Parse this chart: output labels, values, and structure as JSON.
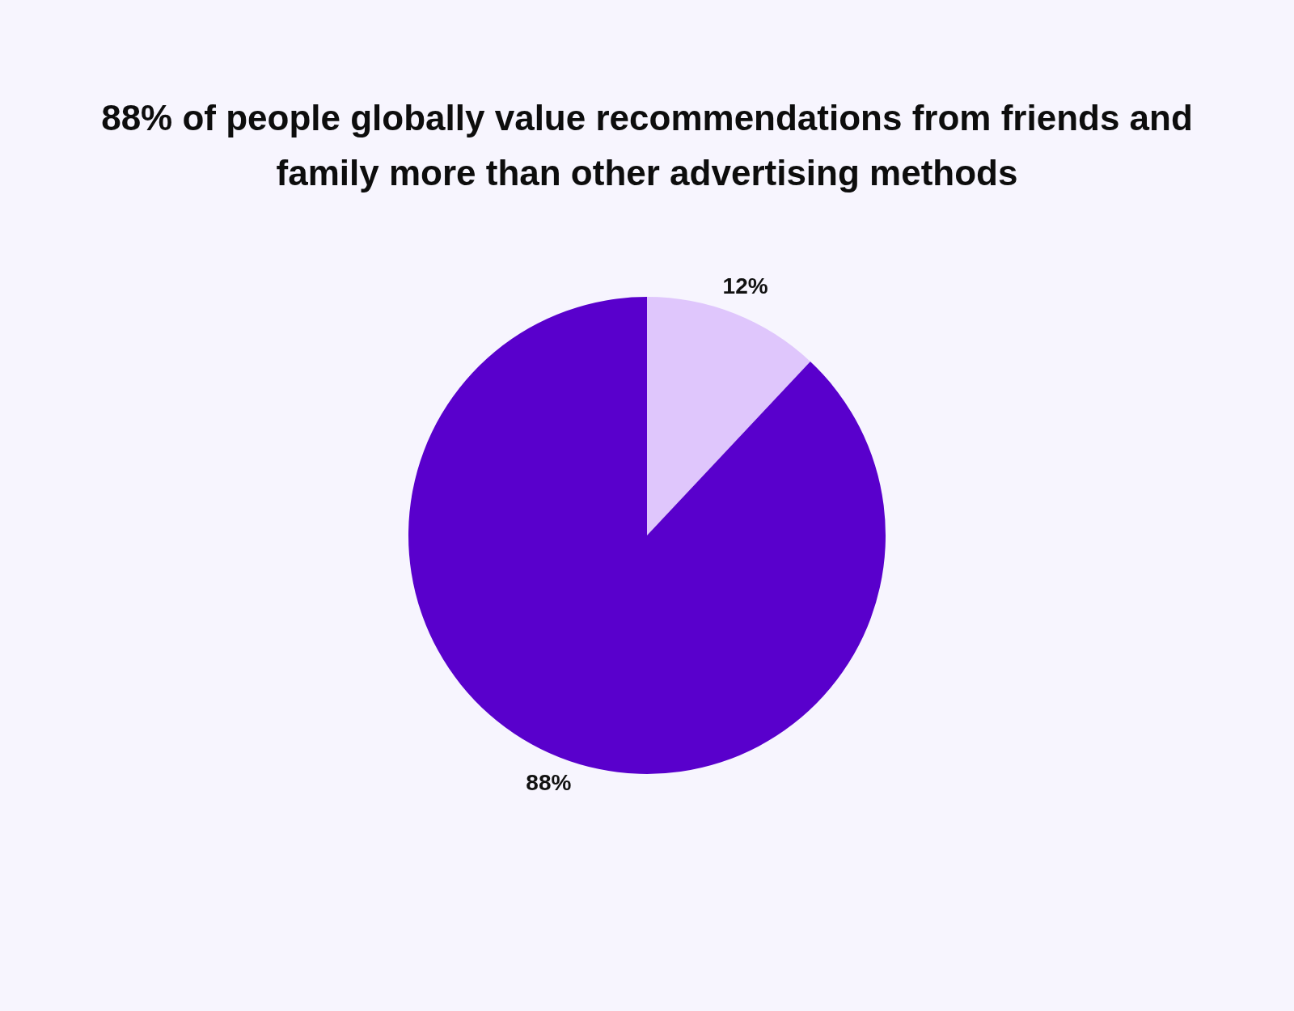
{
  "chart_data": {
    "type": "pie",
    "title": "88% of people globally value recommendations from friends and family more than other advertising methods",
    "categories": [
      null,
      null
    ],
    "values": [
      12,
      88
    ],
    "colors": [
      "#dfc6fc",
      "#5900cc"
    ],
    "value_labels": [
      "12%",
      "88%"
    ],
    "legend": false
  }
}
